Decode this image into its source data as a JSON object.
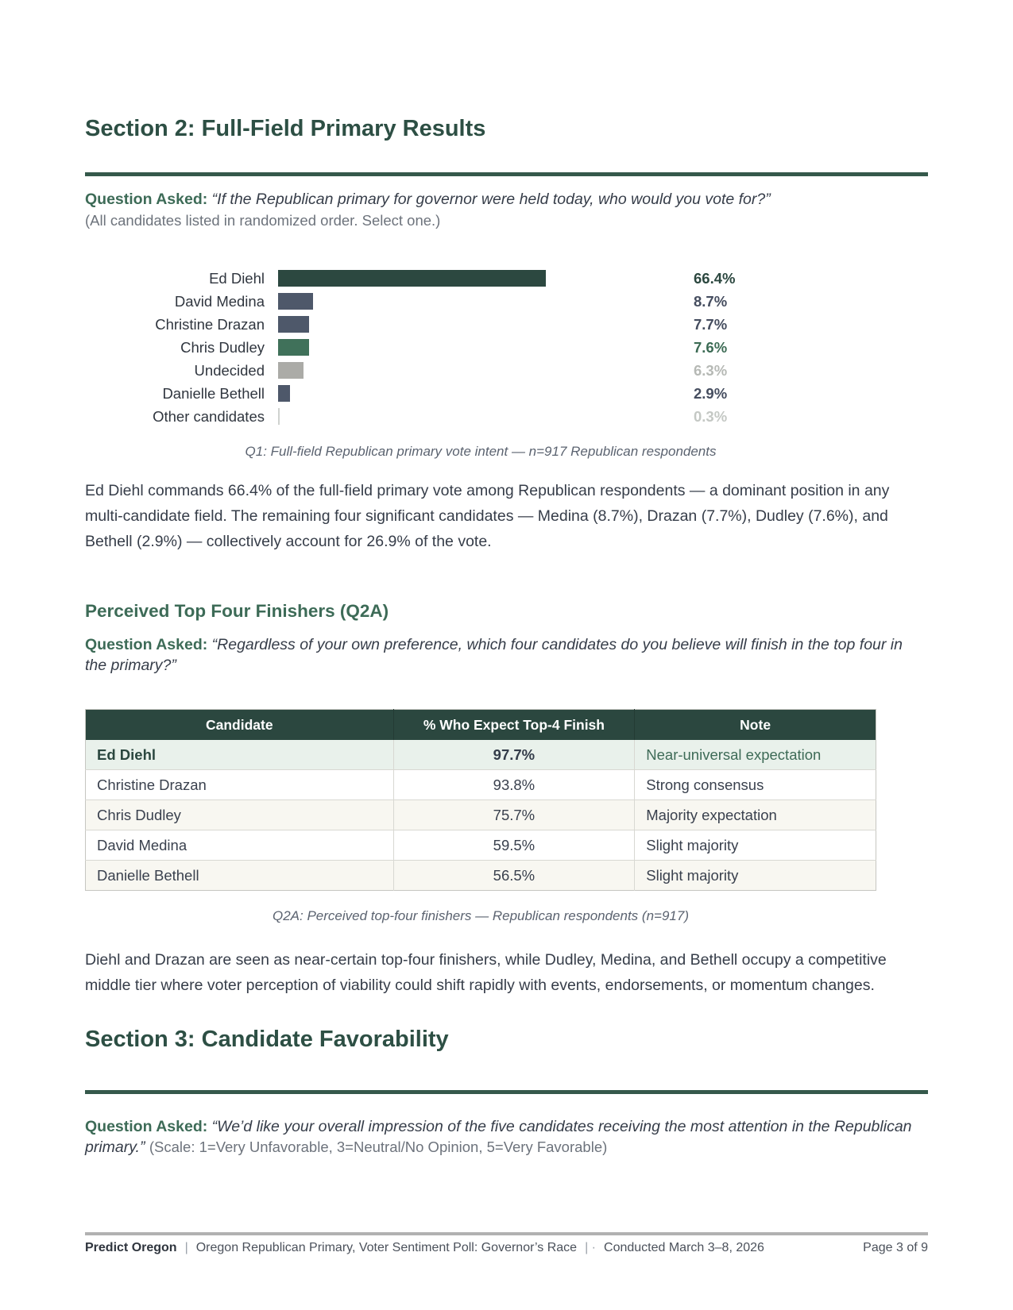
{
  "colors": {
    "heading_green": "#2d4f44",
    "accent_green": "#3d6b57",
    "rule_green": "#35594b",
    "table_header_bg": "#2b473f",
    "highlight_row_bg": "#e9f1eb",
    "alt_row_bg": "#f8f7f1"
  },
  "section2": {
    "title": "Section 2: Full-Field Primary Results",
    "question_label": "Question Asked:",
    "question": "“If the Republican primary for governor were held today, who would you vote for?”",
    "question_note": "(All candidates listed in randomized order. Select one.)"
  },
  "chart_data": {
    "type": "bar",
    "orientation": "horizontal",
    "categories": [
      "Ed Diehl",
      "David Medina",
      "Christine Drazan",
      "Chris Dudley",
      "Undecided",
      "Danielle Bethell",
      "Other candidates"
    ],
    "values": [
      66.4,
      8.7,
      7.7,
      7.6,
      6.3,
      2.9,
      0.3
    ],
    "value_labels": [
      "66.4%",
      "8.7%",
      "7.7%",
      "7.6%",
      "6.3%",
      "2.9%",
      "0.3%"
    ],
    "bar_colors": [
      "#2c4840",
      "#4e586a",
      "#4e586a",
      "#40715a",
      "#ababa7",
      "#4e586a",
      "#cfd2cf"
    ],
    "value_colors": [
      "#2b473f",
      "#454d5f",
      "#454d5f",
      "#3c6b54",
      "#b6b9b5",
      "#454d5f",
      "#c4c8c4"
    ],
    "xlim": [
      0,
      100
    ],
    "grid": false,
    "caption": "Q1: Full-field Republican primary vote intent — n=917 Republican respondents"
  },
  "analysis": {
    "q1": "Ed Diehl commands 66.4% of the full-field primary vote among Republican respondents — a dominant position in any multi-candidate field. The remaining four significant candidates — Medina (8.7%), Drazan (7.7%), Dudley (7.6%), and Bethell (2.9%) — collectively account for 26.9% of the vote.",
    "q2a": "Diehl and Drazan are seen as near-certain top-four finishers, while Dudley, Medina, and Bethell occupy a competitive middle tier where voter perception of viability could shift rapidly with events, endorsements, or momentum changes."
  },
  "subsection_q2a": {
    "title": "Perceived Top Four Finishers (Q2A)",
    "question_label": "Question Asked:",
    "question": "“Regardless of your own preference, which four candidates do you believe will finish in the top four in the primary?”"
  },
  "table": {
    "headers": [
      "Candidate",
      "% Who Expect Top-4 Finish",
      "Note"
    ],
    "rows": [
      {
        "candidate": "Ed Diehl",
        "pct": "97.7%",
        "note": "Near-universal expectation",
        "highlight": true
      },
      {
        "candidate": "Christine Drazan",
        "pct": "93.8%",
        "note": "Strong consensus",
        "highlight": false
      },
      {
        "candidate": "Chris Dudley",
        "pct": "75.7%",
        "note": "Majority expectation",
        "highlight": false
      },
      {
        "candidate": "David Medina",
        "pct": "59.5%",
        "note": "Slight majority",
        "highlight": false
      },
      {
        "candidate": "Danielle Bethell",
        "pct": "56.5%",
        "note": "Slight majority",
        "highlight": false
      }
    ],
    "caption": "Q2A: Perceived top-four finishers — Republican respondents (n=917)"
  },
  "section3": {
    "title": "Section 3: Candidate Favorability",
    "question_label": "Question Asked:",
    "question": "“We’d like your overall impression of the five candidates receiving the most attention in the Republican primary.”",
    "question_scale": "(Scale: 1=Very Unfavorable, 3=Neutral/No Opinion, 5=Very Favorable)"
  },
  "footer": {
    "brand": "Predict Oregon",
    "separator1": "|",
    "report_title": "Oregon Republican Primary, Voter Sentiment Poll: Governor’s Race",
    "separator2": "| ·",
    "conducted": "Conducted March 3–8, 2026",
    "page": "Page 3 of 9"
  }
}
